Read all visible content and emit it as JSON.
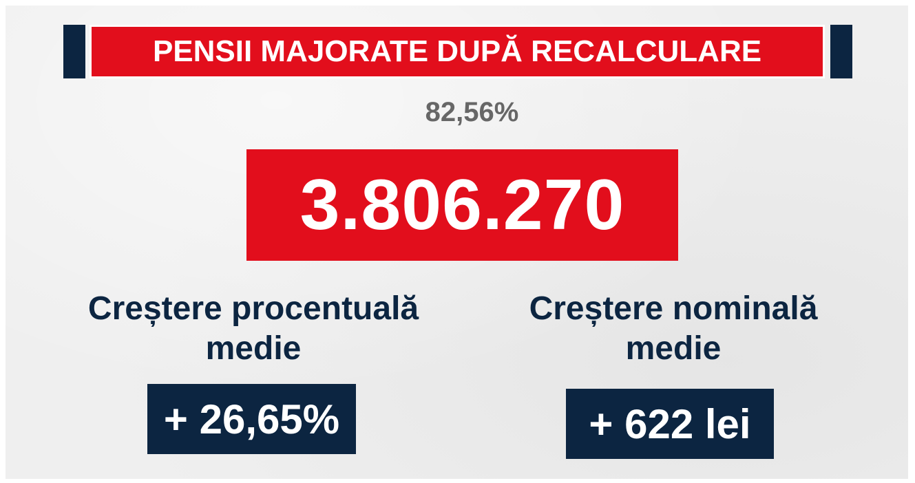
{
  "header": {
    "title": "PENSII MAJORATE DUPĂ RECALCULARE"
  },
  "summary": {
    "percent": "82,56%",
    "total": "3.806.270"
  },
  "stats": {
    "percentage_increase": {
      "label_line1": "Creștere procentuală",
      "label_line2": "medie",
      "value": "+ 26,65%"
    },
    "nominal_increase": {
      "label_line1": "Creștere nominală",
      "label_line2": "medie",
      "value": "+ 622 lei"
    }
  },
  "colors": {
    "red": "#e20e1c",
    "navy": "#0c2541",
    "grey_text": "#676767",
    "background": "#efefef"
  }
}
